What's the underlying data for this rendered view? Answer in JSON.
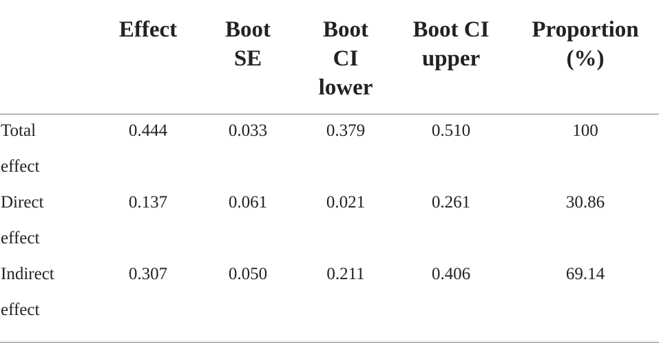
{
  "table": {
    "columns": [
      {
        "lines": [
          "Effect"
        ]
      },
      {
        "lines": [
          "Boot",
          "SE"
        ]
      },
      {
        "lines": [
          "Boot",
          "CI",
          "lower"
        ]
      },
      {
        "lines": [
          "Boot CI",
          "upper"
        ]
      },
      {
        "lines": [
          "Proportion",
          "(%)"
        ]
      }
    ],
    "rows": [
      {
        "label_lines": [
          "Total",
          "effect"
        ],
        "values": [
          "0.444",
          "0.033",
          "0.379",
          "0.510",
          "100"
        ]
      },
      {
        "label_lines": [
          "Direct",
          "effect"
        ],
        "values": [
          "0.137",
          "0.061",
          "0.021",
          "0.261",
          "30.86"
        ]
      },
      {
        "label_lines": [
          "Indirect",
          "effect"
        ],
        "values": [
          "0.307",
          "0.050",
          "0.211",
          "0.406",
          "69.14"
        ]
      }
    ]
  }
}
